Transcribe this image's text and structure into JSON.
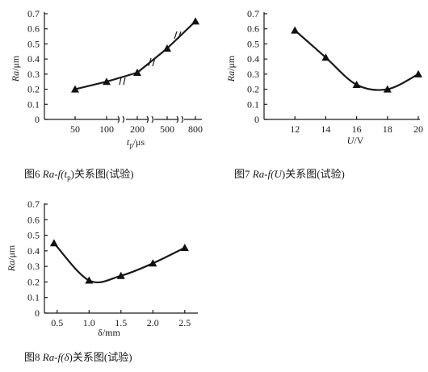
{
  "chart_data": [
    {
      "id": "fig6",
      "type": "line",
      "caption": "图6   Ra-f(t_p)关系图(试验)",
      "caption_parts": {
        "prefix": "图6   ",
        "func": "Ra-f(",
        "var": "t",
        "sub": "p",
        "suffix": ")关系图(试验)"
      },
      "xlabel": {
        "var": "t",
        "sub": "p",
        "unit": "/μs"
      },
      "ylabel": {
        "var": "Ra",
        "unit": "/μm"
      },
      "x_ticks": [
        "50",
        "100",
        "200",
        "500",
        "800"
      ],
      "x_axis_break": true,
      "y_ticks": [
        "0",
        "0.1",
        "0.2",
        "0.3",
        "0.4",
        "0.5",
        "0.6",
        "0.7"
      ],
      "ylim": [
        0,
        0.7
      ],
      "points": [
        {
          "x": 50,
          "y": 0.2
        },
        {
          "x": 100,
          "y": 0.25
        },
        {
          "x": 200,
          "y": 0.31
        },
        {
          "x": 500,
          "y": 0.47
        },
        {
          "x": 800,
          "y": 0.65
        }
      ]
    },
    {
      "id": "fig7",
      "type": "line",
      "caption": "图7   Ra-f(U)关系图(试验)",
      "caption_parts": {
        "prefix": "图7   ",
        "func": "Ra-f(",
        "var": "U",
        "suffix": ")关系图(试验)"
      },
      "xlabel": {
        "var": "U",
        "unit": "/V"
      },
      "ylabel": {
        "var": "Ra",
        "unit": "/μm"
      },
      "x_ticks": [
        "12",
        "14",
        "16",
        "18",
        "20"
      ],
      "xlim": [
        10,
        20
      ],
      "y_ticks": [
        "0",
        "0.1",
        "0.2",
        "0.3",
        "0.4",
        "0.5",
        "0.6",
        "0.7"
      ],
      "ylim": [
        0,
        0.7
      ],
      "points": [
        {
          "x": 12,
          "y": 0.59
        },
        {
          "x": 14,
          "y": 0.41
        },
        {
          "x": 16,
          "y": 0.23
        },
        {
          "x": 18,
          "y": 0.2
        },
        {
          "x": 20,
          "y": 0.3
        }
      ]
    },
    {
      "id": "fig8",
      "type": "line",
      "caption": "图8   Ra-f(δ)关系图(试验)",
      "caption_parts": {
        "prefix": "图8   ",
        "func": "Ra-f(",
        "var": "δ",
        "suffix": ")关系图(试验)"
      },
      "xlabel": {
        "var": "δ",
        "unit": "/mm"
      },
      "ylabel": {
        "var": "Ra",
        "unit": "/μm"
      },
      "x_ticks": [
        "0.5",
        "1.0",
        "1.5",
        "2.0",
        "2.5"
      ],
      "xlim": [
        0.3,
        2.6
      ],
      "y_ticks": [
        "0",
        "0.1",
        "0.2",
        "0.3",
        "0.4",
        "0.5",
        "0.6",
        "0.7"
      ],
      "ylim": [
        0,
        0.7
      ],
      "points": [
        {
          "x": 0.45,
          "y": 0.45
        },
        {
          "x": 1.0,
          "y": 0.21
        },
        {
          "x": 1.5,
          "y": 0.24
        },
        {
          "x": 2.0,
          "y": 0.32
        },
        {
          "x": 2.5,
          "y": 0.42
        }
      ]
    }
  ]
}
